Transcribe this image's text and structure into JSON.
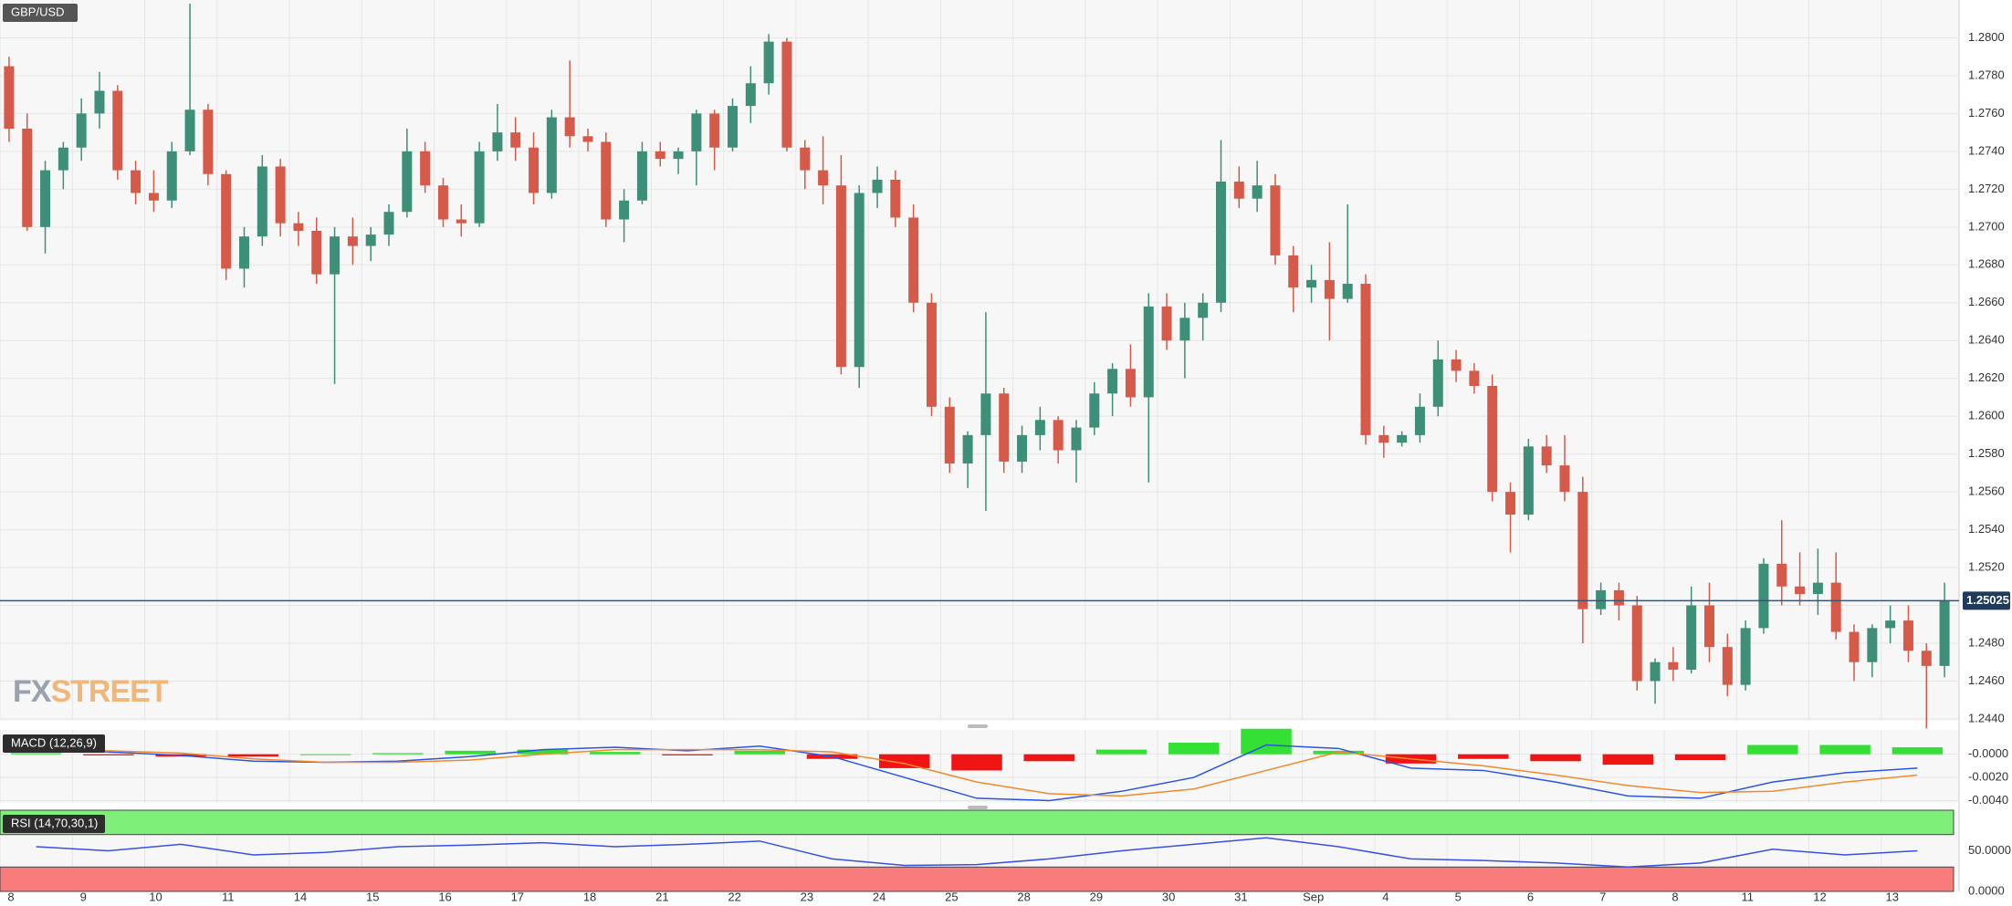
{
  "chart_data": [
    {
      "type": "candlestick",
      "title": "GBP/USD",
      "watermark": {
        "fx": "FX",
        "street": "STREET"
      },
      "up_color": "#3d8f77",
      "down_color": "#d65a4a",
      "ylim": [
        1.2439,
        1.282
      ],
      "yticks": [
        {
          "value": 1.244,
          "label": "1.2440"
        },
        {
          "value": 1.246,
          "label": "1.2460"
        },
        {
          "value": 1.248,
          "label": "1.2480"
        },
        {
          "value": 1.25,
          "label": "1.2500"
        },
        {
          "value": 1.252,
          "label": "1.2520"
        },
        {
          "value": 1.254,
          "label": "1.2540"
        },
        {
          "value": 1.256,
          "label": "1.2560"
        },
        {
          "value": 1.258,
          "label": "1.2580"
        },
        {
          "value": 1.26,
          "label": "1.2600"
        },
        {
          "value": 1.262,
          "label": "1.2620"
        },
        {
          "value": 1.264,
          "label": "1.2640"
        },
        {
          "value": 1.266,
          "label": "1.2660"
        },
        {
          "value": 1.268,
          "label": "1.2680"
        },
        {
          "value": 1.27,
          "label": "1.2700"
        },
        {
          "value": 1.272,
          "label": "1.2720"
        },
        {
          "value": 1.274,
          "label": "1.2740"
        },
        {
          "value": 1.276,
          "label": "1.2760"
        },
        {
          "value": 1.278,
          "label": "1.2780"
        },
        {
          "value": 1.28,
          "label": "1.2800"
        }
      ],
      "last_price": {
        "value": 1.25025,
        "label": "1.25025"
      },
      "grid": true,
      "categories": [
        "8",
        null,
        null,
        null,
        "9",
        null,
        null,
        null,
        "10",
        null,
        null,
        null,
        "11",
        null,
        null,
        null,
        "14",
        null,
        null,
        null,
        "15",
        null,
        null,
        null,
        "16",
        null,
        null,
        null,
        "17",
        null,
        null,
        null,
        "18",
        null,
        null,
        null,
        "21",
        null,
        null,
        null,
        "22",
        null,
        null,
        null,
        "23",
        null,
        null,
        null,
        "24",
        null,
        null,
        null,
        "25",
        null,
        null,
        null,
        "28",
        null,
        null,
        null,
        "29",
        null,
        null,
        null,
        "30",
        null,
        null,
        null,
        "31",
        null,
        null,
        null,
        "Sep",
        null,
        null,
        null,
        "4",
        null,
        null,
        null,
        "5",
        null,
        null,
        null,
        "6",
        null,
        null,
        null,
        "7",
        null,
        null,
        null,
        "8",
        null,
        null,
        null,
        "11",
        null,
        null,
        null,
        "12",
        null,
        null,
        null,
        "13",
        null,
        null,
        null
      ],
      "ohlc": [
        [
          1.2785,
          1.279,
          1.2745,
          1.2752
        ],
        [
          1.2752,
          1.276,
          1.2698,
          1.27
        ],
        [
          1.27,
          1.2735,
          1.2686,
          1.273
        ],
        [
          1.273,
          1.2745,
          1.272,
          1.2742
        ],
        [
          1.2742,
          1.2768,
          1.2735,
          1.276
        ],
        [
          1.276,
          1.2782,
          1.2752,
          1.2772
        ],
        [
          1.2772,
          1.2775,
          1.2725,
          1.273
        ],
        [
          1.273,
          1.2735,
          1.2712,
          1.2718
        ],
        [
          1.2718,
          1.273,
          1.2708,
          1.2714
        ],
        [
          1.2714,
          1.2745,
          1.271,
          1.274
        ],
        [
          1.274,
          1.2818,
          1.2738,
          1.2762
        ],
        [
          1.2762,
          1.2765,
          1.2722,
          1.2728
        ],
        [
          1.2728,
          1.273,
          1.2672,
          1.2678
        ],
        [
          1.2678,
          1.27,
          1.2668,
          1.2695
        ],
        [
          1.2695,
          1.2738,
          1.269,
          1.2732
        ],
        [
          1.2732,
          1.2736,
          1.2695,
          1.2702
        ],
        [
          1.2702,
          1.2708,
          1.269,
          1.2698
        ],
        [
          1.2698,
          1.2705,
          1.267,
          1.2675
        ],
        [
          1.2675,
          1.27,
          1.2617,
          1.2695
        ],
        [
          1.2695,
          1.2705,
          1.268,
          1.269
        ],
        [
          1.269,
          1.27,
          1.2682,
          1.2696
        ],
        [
          1.2696,
          1.2712,
          1.269,
          1.2708
        ],
        [
          1.2708,
          1.2752,
          1.2705,
          1.274
        ],
        [
          1.274,
          1.2745,
          1.2718,
          1.2722
        ],
        [
          1.2722,
          1.2726,
          1.27,
          1.2704
        ],
        [
          1.2704,
          1.2712,
          1.2695,
          1.2702
        ],
        [
          1.2702,
          1.2745,
          1.27,
          1.274
        ],
        [
          1.274,
          1.2765,
          1.2735,
          1.275
        ],
        [
          1.275,
          1.2758,
          1.2735,
          1.2742
        ],
        [
          1.2742,
          1.275,
          1.2712,
          1.2718
        ],
        [
          1.2718,
          1.2762,
          1.2715,
          1.2758
        ],
        [
          1.2758,
          1.2788,
          1.2742,
          1.2748
        ],
        [
          1.2748,
          1.2752,
          1.274,
          1.2745
        ],
        [
          1.2745,
          1.275,
          1.27,
          1.2704
        ],
        [
          1.2704,
          1.272,
          1.2692,
          1.2714
        ],
        [
          1.2714,
          1.2745,
          1.2712,
          1.274
        ],
        [
          1.274,
          1.2745,
          1.2732,
          1.2736
        ],
        [
          1.2736,
          1.2742,
          1.2728,
          1.274
        ],
        [
          1.274,
          1.2762,
          1.2722,
          1.276
        ],
        [
          1.276,
          1.2762,
          1.273,
          1.2742
        ],
        [
          1.2742,
          1.2768,
          1.274,
          1.2764
        ],
        [
          1.2764,
          1.2785,
          1.2755,
          1.2776
        ],
        [
          1.2776,
          1.2802,
          1.277,
          1.2798
        ],
        [
          1.2798,
          1.28,
          1.274,
          1.2742
        ],
        [
          1.2742,
          1.2746,
          1.272,
          1.273
        ],
        [
          1.273,
          1.2748,
          1.2712,
          1.2722
        ],
        [
          1.2722,
          1.2738,
          1.2622,
          1.2626
        ],
        [
          1.2626,
          1.2722,
          1.2615,
          1.2718
        ],
        [
          1.2718,
          1.2732,
          1.271,
          1.2725
        ],
        [
          1.2725,
          1.273,
          1.27,
          1.2705
        ],
        [
          1.2705,
          1.2712,
          1.2655,
          1.266
        ],
        [
          1.266,
          1.2665,
          1.26,
          1.2605
        ],
        [
          1.2605,
          1.261,
          1.257,
          1.2575
        ],
        [
          1.2575,
          1.2592,
          1.2562,
          1.259
        ],
        [
          1.259,
          1.2655,
          1.255,
          1.2612
        ],
        [
          1.2612,
          1.2615,
          1.257,
          1.2576
        ],
        [
          1.2576,
          1.2595,
          1.257,
          1.259
        ],
        [
          1.259,
          1.2605,
          1.2582,
          1.2598
        ],
        [
          1.2598,
          1.26,
          1.2575,
          1.2582
        ],
        [
          1.2582,
          1.2598,
          1.2565,
          1.2594
        ],
        [
          1.2594,
          1.2618,
          1.259,
          1.2612
        ],
        [
          1.2612,
          1.2628,
          1.26,
          1.2625
        ],
        [
          1.2625,
          1.2638,
          1.2605,
          1.261
        ],
        [
          1.261,
          1.2665,
          1.2565,
          1.2658
        ],
        [
          1.2658,
          1.2665,
          1.2635,
          1.264
        ],
        [
          1.264,
          1.266,
          1.262,
          1.2652
        ],
        [
          1.2652,
          1.2665,
          1.264,
          1.266
        ],
        [
          1.266,
          1.2746,
          1.2655,
          1.2724
        ],
        [
          1.2724,
          1.2732,
          1.271,
          1.2715
        ],
        [
          1.2715,
          1.2735,
          1.2708,
          1.2722
        ],
        [
          1.2722,
          1.2728,
          1.268,
          1.2685
        ],
        [
          1.2685,
          1.269,
          1.2655,
          1.2668
        ],
        [
          1.2668,
          1.268,
          1.266,
          1.2672
        ],
        [
          1.2672,
          1.2692,
          1.264,
          1.2662
        ],
        [
          1.2662,
          1.2712,
          1.266,
          1.267
        ],
        [
          1.267,
          1.2675,
          1.2585,
          1.259
        ],
        [
          1.259,
          1.2595,
          1.2578,
          1.2586
        ],
        [
          1.2586,
          1.2592,
          1.2584,
          1.259
        ],
        [
          1.259,
          1.2612,
          1.2586,
          1.2605
        ],
        [
          1.2605,
          1.264,
          1.26,
          1.263
        ],
        [
          1.263,
          1.2635,
          1.2618,
          1.2624
        ],
        [
          1.2624,
          1.2628,
          1.2612,
          1.2616
        ],
        [
          1.2616,
          1.2622,
          1.2555,
          1.256
        ],
        [
          1.256,
          1.2565,
          1.2528,
          1.2548
        ],
        [
          1.2548,
          1.2588,
          1.2545,
          1.2584
        ],
        [
          1.2584,
          1.259,
          1.257,
          1.2574
        ],
        [
          1.2574,
          1.259,
          1.2555,
          1.256
        ],
        [
          1.256,
          1.2568,
          1.248,
          1.2498
        ],
        [
          1.2498,
          1.2512,
          1.2495,
          1.2508
        ],
        [
          1.2508,
          1.2512,
          1.2492,
          1.25
        ],
        [
          1.25,
          1.2505,
          1.2455,
          1.246
        ],
        [
          1.246,
          1.2472,
          1.2448,
          1.247
        ],
        [
          1.247,
          1.2478,
          1.246,
          1.2466
        ],
        [
          1.2466,
          1.251,
          1.2464,
          1.25
        ],
        [
          1.25,
          1.2512,
          1.247,
          1.2478
        ],
        [
          1.2478,
          1.2485,
          1.2452,
          1.2458
        ],
        [
          1.2458,
          1.2492,
          1.2455,
          1.2488
        ],
        [
          1.2488,
          1.2525,
          1.2485,
          1.2522
        ],
        [
          1.2522,
          1.2545,
          1.25,
          1.251
        ],
        [
          1.251,
          1.2528,
          1.25,
          1.2506
        ],
        [
          1.2506,
          1.253,
          1.2495,
          1.2512
        ],
        [
          1.2512,
          1.2528,
          1.2482,
          1.2486
        ],
        [
          1.2486,
          1.249,
          1.246,
          1.247
        ],
        [
          1.247,
          1.249,
          1.2462,
          1.2488
        ],
        [
          1.2488,
          1.25,
          1.248,
          1.2492
        ],
        [
          1.2492,
          1.25,
          1.247,
          1.2476
        ],
        [
          1.2476,
          1.248,
          1.2435,
          1.2468
        ],
        [
          1.2468,
          1.2512,
          1.2462,
          1.25025
        ]
      ]
    },
    {
      "type": "macd",
      "title": "MACD (12,26,9)",
      "ylim": [
        -0.0042,
        0.0021
      ],
      "yticks": [
        {
          "value": 0,
          "label": "-0.0000"
        },
        {
          "value": -0.002,
          "label": "-0.0020"
        },
        {
          "value": -0.004,
          "label": "-0.0040"
        }
      ],
      "grid": true,
      "series": [
        {
          "name": "MACD",
          "color": "#2a55e0",
          "values": [
            0.0003,
            0.0002,
            -0.0001,
            -0.0006,
            -0.0007,
            -0.0006,
            -0.0002,
            0.0004,
            0.0006,
            0.0003,
            0.0007,
            -0.0002,
            -0.002,
            -0.0038,
            -0.004,
            -0.0032,
            -0.002,
            0.0008,
            0.0005,
            -0.0012,
            -0.0014,
            -0.0024,
            -0.0036,
            -0.0038,
            -0.0024,
            -0.0016,
            -0.0012
          ]
        },
        {
          "name": "Signal",
          "color": "#f08a2e",
          "values": [
            0.0002,
            0.0003,
            0.0001,
            -0.0004,
            -0.0007,
            -0.0007,
            -0.0005,
            0.0,
            0.0004,
            0.0004,
            0.0004,
            0.0002,
            -0.0008,
            -0.0024,
            -0.0034,
            -0.0036,
            -0.003,
            -0.0014,
            0.0002,
            -0.0004,
            -0.001,
            -0.0018,
            -0.0027,
            -0.0033,
            -0.0032,
            -0.0024,
            -0.0018
          ]
        },
        {
          "name": "Histogram",
          "up_color": "#33e033",
          "down_color": "#f01414",
          "values": [
            0.0001,
            -0.0001,
            -0.0002,
            -0.0002,
            0.0,
            0.0001,
            0.0003,
            0.0004,
            0.0002,
            -0.0001,
            0.0003,
            -0.0004,
            -0.0012,
            -0.0014,
            -0.0006,
            0.0004,
            0.001,
            0.0022,
            0.0003,
            -0.0008,
            -0.0004,
            -0.0006,
            -0.0009,
            -0.0005,
            0.0008,
            0.0008,
            0.0006
          ]
        }
      ]
    },
    {
      "type": "rsi",
      "title": "RSI (14,70,30,1)",
      "ylim": [
        0,
        100
      ],
      "yticks": [
        {
          "value": 50,
          "label": "50.0000"
        },
        {
          "value": 0,
          "label": "0.0000"
        }
      ],
      "overbought": 70,
      "oversold": 30,
      "overbought_color": "#7ef07a",
      "oversold_color": "#f87c7c",
      "color": "#3b4fe0",
      "values": [
        55,
        50,
        58,
        45,
        48,
        55,
        57,
        60,
        55,
        58,
        62,
        40,
        32,
        33,
        40,
        50,
        58,
        66,
        55,
        40,
        38,
        35,
        30,
        35,
        52,
        45,
        50
      ]
    }
  ]
}
